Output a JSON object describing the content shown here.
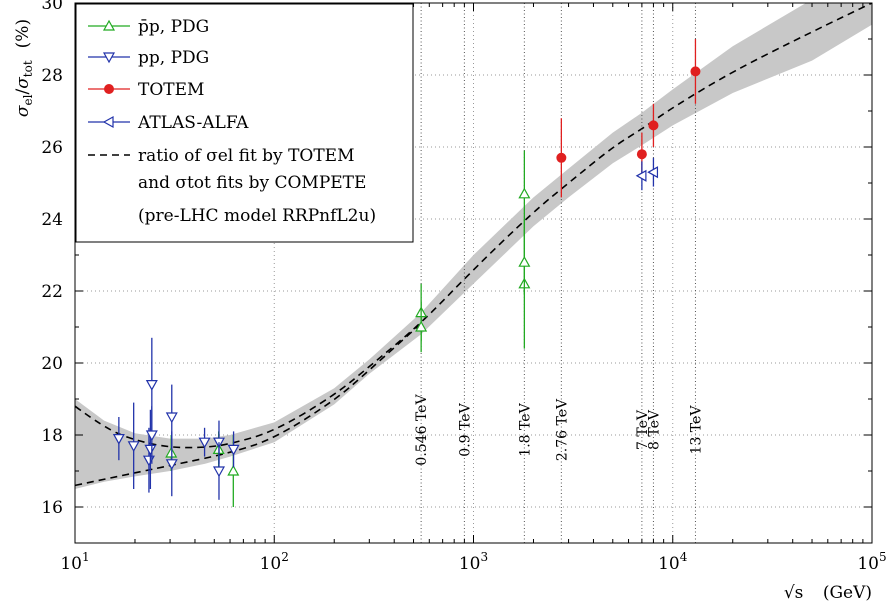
{
  "chart_data": {
    "type": "scatter",
    "title": "",
    "xlabel": "√s (GeV)",
    "ylabel": "σel/σtot (%)",
    "xscale": "log",
    "xlim": [
      10,
      100000
    ],
    "ylim": [
      15,
      30
    ],
    "grid": "dotted",
    "legend_position": "top-left",
    "x_ticks": [
      10,
      100,
      1000,
      10000,
      100000
    ],
    "x_tick_labels": [
      {
        "base": "10",
        "exp": "1"
      },
      {
        "base": "10",
        "exp": "2"
      },
      {
        "base": "10",
        "exp": "3"
      },
      {
        "base": "10",
        "exp": "4"
      },
      {
        "base": "10",
        "exp": "5"
      }
    ],
    "y_ticks": [
      16,
      18,
      20,
      22,
      24,
      26,
      28,
      30
    ],
    "y_tick_labels": [
      "16",
      "18",
      "20",
      "22",
      "24",
      "26",
      "28",
      "30"
    ],
    "x_axis_label": {
      "var": "√s",
      "unit": "(GeV)"
    },
    "y_axis_label": {
      "sym": "σ",
      "sub1": "el",
      "sub2": "tot",
      "unit": "(%)"
    },
    "energy_markers": [
      {
        "x": 546,
        "label": "0.546 TeV"
      },
      {
        "x": 900,
        "label": "0.9 TeV"
      },
      {
        "x": 1800,
        "label": "1.8 TeV"
      },
      {
        "x": 2760,
        "label": "2.76 TeV"
      },
      {
        "x": 7000,
        "label": "7 TeV"
      },
      {
        "x": 8000,
        "label": "8 TeV"
      },
      {
        "x": 13000,
        "label": "13 TeV"
      }
    ],
    "legend": [
      {
        "key": "pbarp",
        "label": "p̄p, PDG"
      },
      {
        "key": "pp",
        "label": "pp, PDG"
      },
      {
        "key": "totem",
        "label": "TOTEM"
      },
      {
        "key": "atlas",
        "label": "ATLAS-ALFA"
      },
      {
        "key": "fit",
        "label": "ratio of σel fit by TOTEM"
      },
      {
        "key": "fit2",
        "label": "and σtot fits by COMPETE"
      },
      {
        "key": "fit3",
        "label": "(pre-LHC model RRPnfL2u)"
      }
    ],
    "series": [
      {
        "name": "p̄p, PDG",
        "color": "#22aa22",
        "marker": "triangle-up-open",
        "points": [
          {
            "x": 30.4,
            "y": 17.5,
            "err": 0.5
          },
          {
            "x": 52.6,
            "y": 17.6,
            "err": 0.5
          },
          {
            "x": 62.3,
            "y": 17.0,
            "err": 1.0
          },
          {
            "x": 546,
            "y": 21.4,
            "err": 0.8
          },
          {
            "x": 546,
            "y": 21.0,
            "err": 0.7
          },
          {
            "x": 1800,
            "y": 22.2,
            "err": 1.8
          },
          {
            "x": 1800,
            "y": 22.8,
            "err": 0.9
          },
          {
            "x": 1800,
            "y": 24.7,
            "err": 1.2
          }
        ]
      },
      {
        "name": "pp, PDG",
        "color": "#2233aa",
        "marker": "triangle-down-open",
        "points": [
          {
            "x": 16.6,
            "y": 17.9,
            "err": 0.6
          },
          {
            "x": 19.7,
            "y": 17.7,
            "err": 1.2
          },
          {
            "x": 23.5,
            "y": 17.3,
            "err": 0.9
          },
          {
            "x": 23.9,
            "y": 17.6,
            "err": 1.1
          },
          {
            "x": 24.3,
            "y": 19.4,
            "err": 1.3
          },
          {
            "x": 24.3,
            "y": 18.0,
            "err": 0.8
          },
          {
            "x": 30.6,
            "y": 18.5,
            "err": 0.9
          },
          {
            "x": 30.6,
            "y": 17.2,
            "err": 0.9
          },
          {
            "x": 44.7,
            "y": 17.8,
            "err": 0.4
          },
          {
            "x": 52.8,
            "y": 17.8,
            "err": 0.6
          },
          {
            "x": 52.8,
            "y": 17.0,
            "err": 0.8
          },
          {
            "x": 62.5,
            "y": 17.6,
            "err": 0.5
          }
        ]
      },
      {
        "name": "TOTEM",
        "color": "#e02020",
        "marker": "circle-filled",
        "points": [
          {
            "x": 2760,
            "y": 25.7,
            "err": 1.1
          },
          {
            "x": 7000,
            "y": 25.8,
            "err": 0.6
          },
          {
            "x": 8000,
            "y": 26.6,
            "err": 0.6
          },
          {
            "x": 13000,
            "y": 28.1,
            "err": 0.9
          }
        ]
      },
      {
        "name": "ATLAS-ALFA",
        "color": "#2233aa",
        "marker": "triangle-left-open",
        "points": [
          {
            "x": 7000,
            "y": 25.2,
            "err": 0.4
          },
          {
            "x": 8000,
            "y": 25.3,
            "err": 0.4
          }
        ]
      }
    ],
    "fit": {
      "name": "ratio of σel fit by TOTEM and σtot fits by COMPETE (pre-LHC model RRPnfL2u)",
      "color": "#000000",
      "band_color": "#c8c8c8",
      "curves": [
        {
          "x": [
            10,
            14,
            20,
            30,
            45,
            60,
            100,
            200,
            300,
            546,
            1000,
            2000,
            3000,
            5000,
            7000,
            10000,
            20000,
            50000,
            100000
          ],
          "y": [
            18.8,
            18.2,
            17.85,
            17.65,
            17.65,
            17.75,
            18.1,
            19.1,
            19.9,
            21.1,
            22.6,
            24.2,
            25.0,
            26.0,
            26.5,
            27.1,
            28.1,
            29.2,
            30.0
          ]
        },
        {
          "x": [
            10,
            20,
            30,
            60,
            100,
            200,
            300,
            546
          ],
          "y": [
            16.6,
            16.95,
            17.15,
            17.5,
            17.9,
            18.95,
            19.8,
            21.1
          ]
        }
      ],
      "band": {
        "x": [
          10,
          14,
          20,
          30,
          45,
          60,
          100,
          200,
          300,
          546,
          1000,
          2000,
          3000,
          5000,
          7000,
          10000,
          20000,
          50000,
          100000
        ],
        "upper": [
          19.0,
          18.4,
          18.05,
          17.9,
          17.9,
          18.0,
          18.35,
          19.3,
          20.1,
          21.4,
          23.0,
          24.6,
          25.4,
          26.4,
          26.95,
          27.6,
          28.8,
          30.1,
          30.2
        ],
        "lower": [
          16.5,
          16.7,
          16.85,
          17.0,
          17.2,
          17.4,
          17.8,
          18.85,
          19.7,
          20.8,
          22.2,
          23.8,
          24.6,
          25.55,
          26.05,
          26.6,
          27.5,
          28.4,
          29.4
        ]
      }
    }
  }
}
